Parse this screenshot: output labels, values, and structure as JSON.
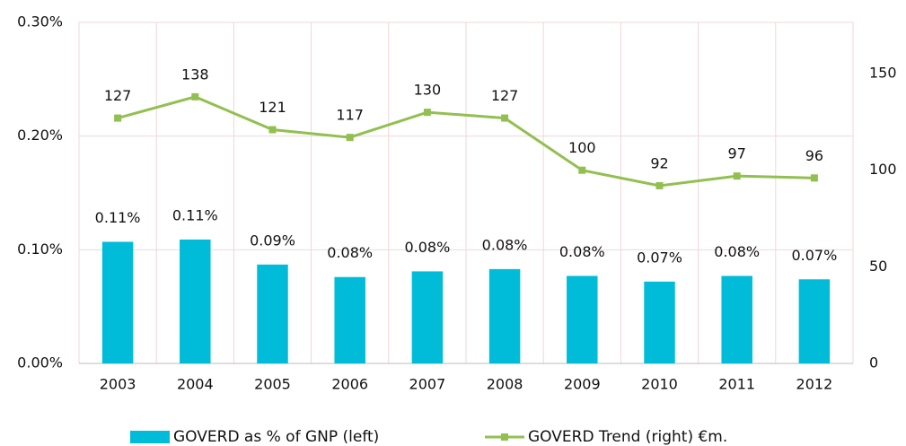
{
  "chart_data": {
    "type": "bar",
    "categories": [
      "2003",
      "2004",
      "2005",
      "2006",
      "2007",
      "2008",
      "2009",
      "2010",
      "2011",
      "2012"
    ],
    "series": [
      {
        "name": "GOVERD as % of GNP (left)",
        "type": "bar",
        "color": "#00bcd8",
        "values": [
          0.107,
          0.109,
          0.087,
          0.076,
          0.081,
          0.083,
          0.077,
          0.072,
          0.077,
          0.074
        ],
        "value_labels": [
          "0.11%",
          "0.11%",
          "0.09%",
          "0.08%",
          "0.08%",
          "0.08%",
          "0.08%",
          "0.07%",
          "0.08%",
          "0.07%"
        ]
      },
      {
        "name": "GOVERD Trend (right) €m.",
        "type": "line",
        "axis": "y2",
        "color": "#92c050",
        "values": [
          127,
          138,
          121,
          117,
          130,
          127,
          100,
          92,
          97,
          96
        ]
      }
    ],
    "ylim": [
      0,
      0.3
    ],
    "yticks": [
      {
        "value": 0,
        "label": "0.00%"
      },
      {
        "value": 0.1,
        "label": "0.10%"
      },
      {
        "value": 0.2,
        "label": "0.20%"
      },
      {
        "value": 0.3,
        "label": "0.30%"
      }
    ],
    "y2lim": [
      0,
      176.5
    ],
    "y2ticks": [
      0,
      50,
      100,
      150
    ],
    "grid": true
  }
}
